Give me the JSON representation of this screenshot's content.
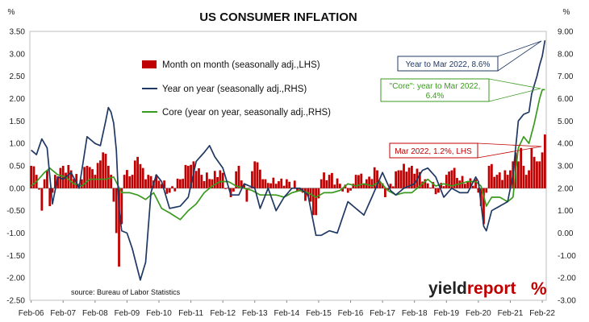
{
  "chart_data": {
    "type": "bar",
    "title": "US CONSUMER INFLATION",
    "left_unit": "%",
    "right_unit": "%",
    "y_left_ticks": [
      "3.50",
      "3.00",
      "2.50",
      "2.00",
      "1.50",
      "1.00",
      "0.50",
      "0.00",
      "-0.50",
      "-1.00",
      "-1.50",
      "-2.00",
      "-2.50"
    ],
    "y_right_ticks": [
      "9.00",
      "8.00",
      "7.00",
      "6.00",
      "5.00",
      "4.00",
      "3.00",
      "2.00",
      "1.00",
      "0.00",
      "-1.00",
      "-2.00",
      "-3.00"
    ],
    "ylim_left": [
      -2.5,
      3.5
    ],
    "ylim_right": [
      -3,
      9
    ],
    "x_ticks": [
      "Feb-06",
      "Feb-07",
      "Feb-08",
      "Feb-09",
      "Feb-10",
      "Feb-11",
      "Feb-12",
      "Feb-13",
      "Feb-14",
      "Feb-15",
      "Feb-16",
      "Feb-17",
      "Feb-18",
      "Feb-19",
      "Feb-20",
      "Feb-21",
      "Feb-22"
    ],
    "start_month": "2006-02",
    "end_month": "2022-03",
    "legend": [
      {
        "label": "Month on month (seasonally adj.,LHS)",
        "color": "#c00000",
        "kind": "bar"
      },
      {
        "label": "Year on year (seasonally adj.,RHS)",
        "color": "#1f3864",
        "kind": "line"
      },
      {
        "label": "Core (year on year, seasonally adj.,RHS)",
        "color": "#3a9a1e",
        "kind": "line"
      }
    ],
    "series": [
      {
        "name": "Month on month (seasonally adj.,LHS)",
        "axis": "left",
        "type": "bar",
        "color": "#c00000",
        "anchors": [
          [
            "2006-02",
            0.5
          ],
          [
            "2006-04",
            0.3
          ],
          [
            "2006-06",
            -0.5
          ],
          [
            "2006-07",
            0.2
          ],
          [
            "2006-08",
            0.4
          ],
          [
            "2006-09",
            -0.4
          ],
          [
            "2006-10",
            -0.1
          ],
          [
            "2006-11",
            0.3
          ],
          [
            "2007-02",
            0.5
          ],
          [
            "2007-05",
            0.4
          ],
          [
            "2007-08",
            0.1
          ],
          [
            "2007-11",
            0.5
          ],
          [
            "2008-02",
            0.3
          ],
          [
            "2008-05",
            0.8
          ],
          [
            "2008-07",
            0.5
          ],
          [
            "2008-08",
            0.3
          ],
          [
            "2008-09",
            -0.3
          ],
          [
            "2008-10",
            -1.0
          ],
          [
            "2008-11",
            -1.75
          ],
          [
            "2008-12",
            -0.8
          ],
          [
            "2009-01",
            0.3
          ],
          [
            "2009-04",
            0.3
          ],
          [
            "2009-06",
            0.7
          ],
          [
            "2009-09",
            0.2
          ],
          [
            "2010-01",
            0.3
          ],
          [
            "2010-06",
            -0.1
          ],
          [
            "2010-10",
            0.2
          ],
          [
            "2011-01",
            0.5
          ],
          [
            "2011-03",
            0.6
          ],
          [
            "2011-06",
            0.3
          ],
          [
            "2011-10",
            0.2
          ],
          [
            "2012-01",
            0.4
          ],
          [
            "2012-05",
            -0.2
          ],
          [
            "2012-08",
            0.5
          ],
          [
            "2012-11",
            -0.3
          ],
          [
            "2013-02",
            0.6
          ],
          [
            "2013-06",
            0.2
          ],
          [
            "2013-10",
            0.1
          ],
          [
            "2014-02",
            0.2
          ],
          [
            "2014-08",
            -0.1
          ],
          [
            "2014-11",
            -0.3
          ],
          [
            "2014-12",
            -0.6
          ],
          [
            "2015-01",
            -0.6
          ],
          [
            "2015-03",
            0.2
          ],
          [
            "2015-06",
            0.3
          ],
          [
            "2015-10",
            0.1
          ],
          [
            "2016-01",
            -0.1
          ],
          [
            "2016-03",
            0.1
          ],
          [
            "2016-04",
            0.3
          ],
          [
            "2016-08",
            0.2
          ],
          [
            "2016-12",
            0.4
          ],
          [
            "2017-03",
            -0.2
          ],
          [
            "2017-08",
            0.4
          ],
          [
            "2017-09",
            0.4
          ],
          [
            "2018-01",
            0.5
          ],
          [
            "2018-06",
            0.2
          ],
          [
            "2018-11",
            -0.1
          ],
          [
            "2019-02",
            0.3
          ],
          [
            "2019-04",
            0.4
          ],
          [
            "2019-09",
            0.1
          ],
          [
            "2020-01",
            0.2
          ],
          [
            "2020-03",
            -0.4
          ],
          [
            "2020-04",
            -0.8
          ],
          [
            "2020-05",
            -0.1
          ],
          [
            "2020-06",
            0.5
          ],
          [
            "2020-09",
            0.3
          ],
          [
            "2021-01",
            0.3
          ],
          [
            "2021-02",
            0.4
          ],
          [
            "2021-03",
            0.6
          ],
          [
            "2021-04",
            0.8
          ],
          [
            "2021-05",
            0.6
          ],
          [
            "2021-06",
            0.9
          ],
          [
            "2021-07",
            0.5
          ],
          [
            "2021-08",
            0.3
          ],
          [
            "2021-09",
            0.4
          ],
          [
            "2021-10",
            0.9
          ],
          [
            "2021-11",
            0.7
          ],
          [
            "2021-12",
            0.6
          ],
          [
            "2022-01",
            0.6
          ],
          [
            "2022-02",
            0.8
          ],
          [
            "2022-03",
            1.2
          ]
        ]
      },
      {
        "name": "Year on year (seasonally adj.,RHS)",
        "axis": "right",
        "type": "line",
        "color": "#1f3864",
        "anchors": [
          [
            "2006-02",
            3.7
          ],
          [
            "2006-04",
            3.5
          ],
          [
            "2006-06",
            4.2
          ],
          [
            "2006-08",
            3.8
          ],
          [
            "2006-10",
            1.3
          ],
          [
            "2006-12",
            2.5
          ],
          [
            "2007-02",
            2.4
          ],
          [
            "2007-05",
            2.7
          ],
          [
            "2007-08",
            2.0
          ],
          [
            "2007-11",
            4.3
          ],
          [
            "2008-02",
            4.0
          ],
          [
            "2008-04",
            3.9
          ],
          [
            "2008-06",
            5.0
          ],
          [
            "2008-07",
            5.6
          ],
          [
            "2008-08",
            5.4
          ],
          [
            "2008-09",
            4.9
          ],
          [
            "2008-10",
            3.7
          ],
          [
            "2008-11",
            1.1
          ],
          [
            "2008-12",
            0.1
          ],
          [
            "2009-02",
            0.0
          ],
          [
            "2009-04",
            -0.7
          ],
          [
            "2009-07",
            -2.1
          ],
          [
            "2009-09",
            -1.3
          ],
          [
            "2009-11",
            1.8
          ],
          [
            "2010-01",
            2.6
          ],
          [
            "2010-03",
            2.3
          ],
          [
            "2010-06",
            1.1
          ],
          [
            "2010-10",
            1.2
          ],
          [
            "2011-01",
            1.6
          ],
          [
            "2011-04",
            3.2
          ],
          [
            "2011-07",
            3.6
          ],
          [
            "2011-09",
            3.9
          ],
          [
            "2011-11",
            3.4
          ],
          [
            "2012-02",
            2.9
          ],
          [
            "2012-05",
            1.7
          ],
          [
            "2012-08",
            1.7
          ],
          [
            "2012-10",
            2.2
          ],
          [
            "2013-02",
            2.0
          ],
          [
            "2013-04",
            1.1
          ],
          [
            "2013-07",
            2.0
          ],
          [
            "2013-10",
            1.0
          ],
          [
            "2014-01",
            1.6
          ],
          [
            "2014-04",
            2.0
          ],
          [
            "2014-07",
            2.0
          ],
          [
            "2014-10",
            1.7
          ],
          [
            "2015-01",
            -0.1
          ],
          [
            "2015-03",
            -0.1
          ],
          [
            "2015-06",
            0.1
          ],
          [
            "2015-09",
            0.0
          ],
          [
            "2016-01",
            1.4
          ],
          [
            "2016-04",
            1.1
          ],
          [
            "2016-07",
            0.8
          ],
          [
            "2016-10",
            1.6
          ],
          [
            "2017-02",
            2.7
          ],
          [
            "2017-05",
            1.9
          ],
          [
            "2017-07",
            1.7
          ],
          [
            "2017-10",
            2.0
          ],
          [
            "2018-02",
            2.2
          ],
          [
            "2018-05",
            2.8
          ],
          [
            "2018-07",
            2.9
          ],
          [
            "2018-10",
            2.5
          ],
          [
            "2019-01",
            1.6
          ],
          [
            "2019-04",
            2.0
          ],
          [
            "2019-07",
            1.8
          ],
          [
            "2019-10",
            1.8
          ],
          [
            "2020-01",
            2.5
          ],
          [
            "2020-02",
            2.3
          ],
          [
            "2020-04",
            0.3
          ],
          [
            "2020-05",
            0.1
          ],
          [
            "2020-07",
            1.0
          ],
          [
            "2020-10",
            1.2
          ],
          [
            "2021-01",
            1.4
          ],
          [
            "2021-03",
            2.6
          ],
          [
            "2021-05",
            5.0
          ],
          [
            "2021-07",
            5.3
          ],
          [
            "2021-09",
            5.4
          ],
          [
            "2021-10",
            6.2
          ],
          [
            "2021-12",
            7.0
          ],
          [
            "2022-01",
            7.5
          ],
          [
            "2022-02",
            7.9
          ],
          [
            "2022-03",
            8.6
          ]
        ]
      },
      {
        "name": "Core (year on year, seasonally adj.,RHS)",
        "axis": "right",
        "type": "line",
        "color": "#3a9a1e",
        "anchors": [
          [
            "2006-02",
            2.1
          ],
          [
            "2006-04",
            2.3
          ],
          [
            "2006-07",
            2.7
          ],
          [
            "2006-09",
            2.9
          ],
          [
            "2006-12",
            2.6
          ],
          [
            "2007-03",
            2.5
          ],
          [
            "2007-06",
            2.2
          ],
          [
            "2007-09",
            2.1
          ],
          [
            "2007-12",
            2.4
          ],
          [
            "2008-03",
            2.4
          ],
          [
            "2008-06",
            2.4
          ],
          [
            "2008-09",
            2.5
          ],
          [
            "2008-12",
            1.8
          ],
          [
            "2009-03",
            1.8
          ],
          [
            "2009-06",
            1.7
          ],
          [
            "2009-09",
            1.5
          ],
          [
            "2009-12",
            1.8
          ],
          [
            "2010-03",
            1.1
          ],
          [
            "2010-06",
            0.9
          ],
          [
            "2010-10",
            0.6
          ],
          [
            "2011-01",
            1.0
          ],
          [
            "2011-04",
            1.3
          ],
          [
            "2011-07",
            1.8
          ],
          [
            "2011-10",
            2.1
          ],
          [
            "2012-01",
            2.3
          ],
          [
            "2012-04",
            2.3
          ],
          [
            "2012-07",
            2.1
          ],
          [
            "2012-10",
            2.0
          ],
          [
            "2013-01",
            1.9
          ],
          [
            "2013-04",
            1.7
          ],
          [
            "2013-07",
            1.7
          ],
          [
            "2013-10",
            1.7
          ],
          [
            "2014-01",
            1.6
          ],
          [
            "2014-04",
            1.8
          ],
          [
            "2014-07",
            1.9
          ],
          [
            "2014-10",
            1.8
          ],
          [
            "2015-01",
            1.6
          ],
          [
            "2015-04",
            1.8
          ],
          [
            "2015-07",
            1.8
          ],
          [
            "2015-10",
            1.9
          ],
          [
            "2016-01",
            2.2
          ],
          [
            "2016-04",
            2.1
          ],
          [
            "2016-07",
            2.2
          ],
          [
            "2016-10",
            2.1
          ],
          [
            "2017-01",
            2.3
          ],
          [
            "2017-04",
            1.9
          ],
          [
            "2017-07",
            1.7
          ],
          [
            "2017-10",
            1.8
          ],
          [
            "2018-01",
            1.8
          ],
          [
            "2018-04",
            2.1
          ],
          [
            "2018-07",
            2.4
          ],
          [
            "2018-10",
            2.1
          ],
          [
            "2019-01",
            2.2
          ],
          [
            "2019-04",
            2.1
          ],
          [
            "2019-07",
            2.2
          ],
          [
            "2019-10",
            2.3
          ],
          [
            "2020-01",
            2.3
          ],
          [
            "2020-03",
            2.1
          ],
          [
            "2020-05",
            1.2
          ],
          [
            "2020-07",
            1.6
          ],
          [
            "2020-10",
            1.6
          ],
          [
            "2021-01",
            1.4
          ],
          [
            "2021-03",
            1.6
          ],
          [
            "2021-05",
            3.8
          ],
          [
            "2021-07",
            4.3
          ],
          [
            "2021-09",
            4.0
          ],
          [
            "2021-11",
            4.9
          ],
          [
            "2022-01",
            6.0
          ],
          [
            "2022-02",
            6.4
          ],
          [
            "2022-03",
            6.4
          ]
        ]
      }
    ],
    "annotations": {
      "yoy": {
        "text": "Year to Mar 2022, 8.6%",
        "color": "#1f3864"
      },
      "core_line1": "\"Core\": year to Mar 2022,",
      "core_line2": "6.4%",
      "core_color": "#3a9a1e",
      "mom": {
        "text": "Mar 2022, 1.2%, LHS",
        "color": "#c00000"
      }
    },
    "source": "source: Bureau of Labor Statistics",
    "logo": {
      "text_dark": "yield",
      "text_red": "report",
      "symbol": "%"
    }
  }
}
